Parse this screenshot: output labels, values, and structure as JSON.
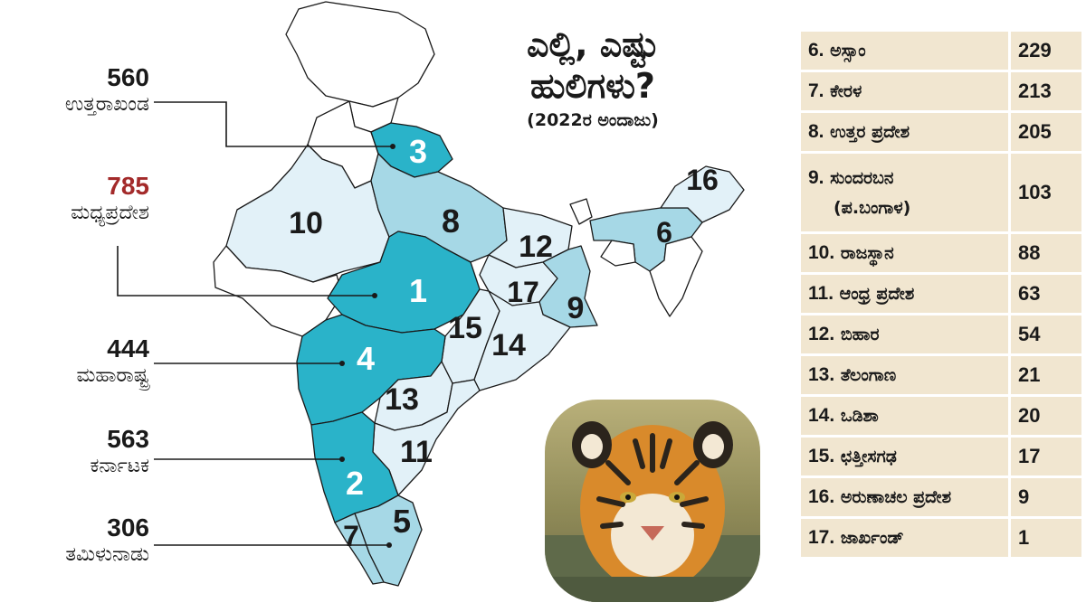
{
  "title": {
    "line1": "ಎಲ್ಲಿ, ಎಷ್ಟು",
    "line2": "ಹುಲಿಗಳು?",
    "subtitle": "(2022ರ ಅಂದಾಜು)"
  },
  "callouts": [
    {
      "count": "560",
      "state": "ಉತ್ತರಾಖಂಡ",
      "rank": "3",
      "count_color": "#1a1a1a"
    },
    {
      "count": "785",
      "state": "ಮಧ್ಯಪ್ರದೇಶ",
      "rank": "1",
      "count_color": "#a32a2a"
    },
    {
      "count": "444",
      "state": "ಮಹಾರಾಷ್ಟ್ರ",
      "rank": "4",
      "count_color": "#1a1a1a"
    },
    {
      "count": "563",
      "state": "ಕರ್ನಾಟಕ",
      "rank": "2",
      "count_color": "#1a1a1a"
    },
    {
      "count": "306",
      "state": "ತಮಿಳುನಾಡು",
      "rank": "5",
      "count_color": "#1a1a1a"
    }
  ],
  "map_labels": [
    "1",
    "2",
    "3",
    "4",
    "5",
    "6",
    "7",
    "8",
    "9",
    "10",
    "11",
    "12",
    "13",
    "14",
    "15",
    "16",
    "17"
  ],
  "table": [
    {
      "rank": "6.",
      "name": "ಅಸ್ಸಾಂ",
      "count": "229"
    },
    {
      "rank": "7.",
      "name": "ಕೇರಳ",
      "count": "213"
    },
    {
      "rank": "8.",
      "name": "ಉತ್ತರ ಪ್ರದೇಶ",
      "count": "205"
    },
    {
      "rank": "9.",
      "name": "ಸುಂದರಬನ",
      "name_line2": "(ಪ.ಬಂಗಾಳ)",
      "count": "103"
    },
    {
      "rank": "10.",
      "name": "ರಾಜಸ್ಥಾನ",
      "count": "88"
    },
    {
      "rank": "11.",
      "name": "ಆಂಧ್ರ ಪ್ರದೇಶ",
      "count": "63"
    },
    {
      "rank": "12.",
      "name": "ಬಿಹಾರ",
      "count": "54"
    },
    {
      "rank": "13.",
      "name": "ತೆಲಂಗಾಣ",
      "count": "21"
    },
    {
      "rank": "14.",
      "name": "ಒಡಿಶಾ",
      "count": "20"
    },
    {
      "rank": "15.",
      "name": "ಛತ್ತೀಸಗಢ",
      "count": "17"
    },
    {
      "rank": "16.",
      "name": "ಅರುಣಾಚಲ ಪ್ರದೇಶ",
      "count": "9"
    },
    {
      "rank": "17.",
      "name": "ಜಾರ್ಖಂಡ್",
      "count": "1"
    }
  ],
  "colors": {
    "dark": "#2ab3c9",
    "medium": "#a6d8e6",
    "light": "#e2f1f8",
    "white": "#ffffff",
    "border": "#1a1a1a",
    "table_bg": "#f1e6d0",
    "highlight": "#a32a2a"
  },
  "image": {
    "icon": "tiger-photo"
  }
}
